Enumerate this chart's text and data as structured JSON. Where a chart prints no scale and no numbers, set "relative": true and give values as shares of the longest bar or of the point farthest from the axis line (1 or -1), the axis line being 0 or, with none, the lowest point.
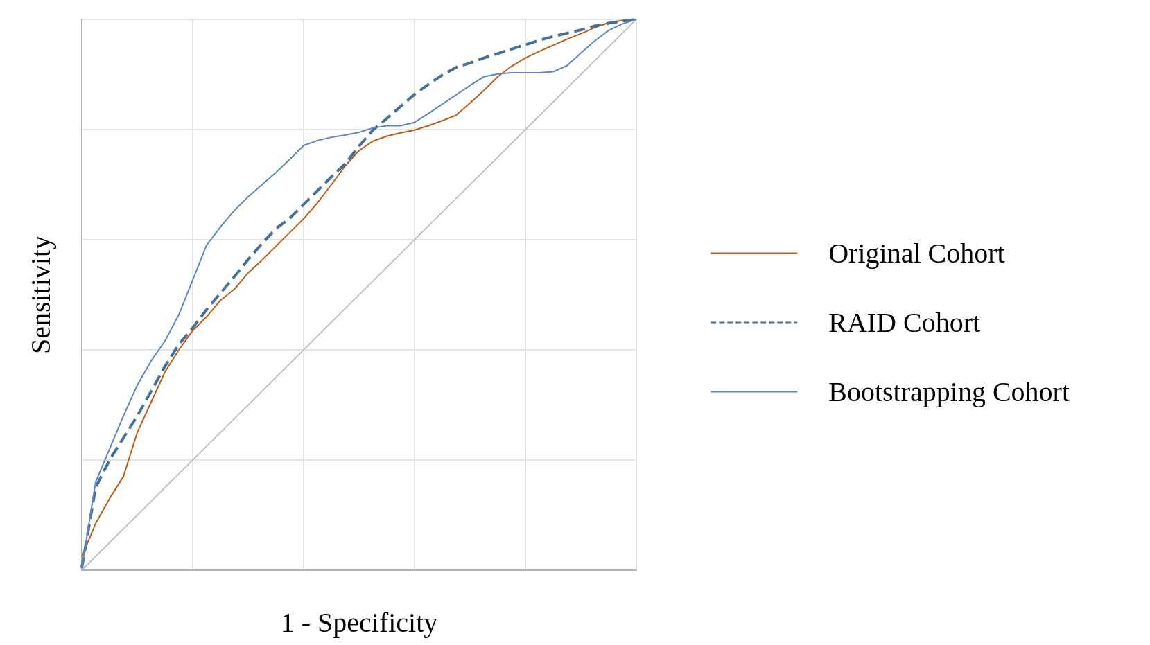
{
  "chart_data": {
    "type": "line",
    "relative": true,
    "xlabel": "1 - Specificity",
    "ylabel": "Sensitivity",
    "grid": true,
    "legend": "right",
    "marker": "none",
    "categories": [
      null,
      null,
      null,
      null,
      null,
      null,
      null,
      null,
      null,
      null,
      null,
      null,
      null,
      null,
      null,
      null,
      null,
      null,
      null,
      null,
      null,
      null,
      null,
      null,
      null,
      null,
      null,
      null,
      null,
      null,
      null,
      null,
      null,
      null,
      null,
      null,
      null,
      null,
      null,
      null,
      null
    ],
    "series": [
      {
        "name": "Original Cohort",
        "color": "#c55a11",
        "line_style": "solid",
        "values": [
          0.024,
          0.085,
          0.13,
          0.17,
          0.25,
          0.305,
          0.36,
          0.4,
          0.435,
          0.46,
          0.49,
          0.51,
          0.54,
          0.563,
          0.588,
          0.613,
          0.638,
          0.667,
          0.7,
          0.734,
          0.762,
          0.779,
          0.788,
          0.794,
          0.799,
          0.807,
          0.816,
          0.826,
          0.848,
          0.871,
          0.896,
          0.915,
          0.93,
          0.942,
          0.953,
          0.964,
          0.974,
          0.985,
          0.994,
          0.998,
          1.0
        ]
      },
      {
        "name": "RAID Cohort",
        "color": "#41719c",
        "line_style": "dashed",
        "values": [
          0.004,
          0.15,
          0.2,
          0.24,
          0.28,
          0.325,
          0.37,
          0.41,
          0.44,
          0.473,
          0.503,
          0.533,
          0.564,
          0.593,
          0.62,
          0.639,
          0.664,
          0.689,
          0.714,
          0.738,
          0.77,
          0.799,
          0.82,
          0.842,
          0.864,
          0.882,
          0.899,
          0.913,
          0.921,
          0.93,
          0.938,
          0.946,
          0.954,
          0.962,
          0.969,
          0.975,
          0.981,
          0.988,
          0.993,
          0.997,
          1.0
        ]
      },
      {
        "name": "Bootstrapping Cohort",
        "color": "#5b85c8",
        "line_style": "solid",
        "values": [
          0.004,
          0.16,
          0.22,
          0.28,
          0.336,
          0.38,
          0.416,
          0.464,
          0.527,
          0.59,
          0.623,
          0.653,
          0.678,
          0.7,
          0.722,
          0.746,
          0.771,
          0.78,
          0.786,
          0.79,
          0.795,
          0.803,
          0.807,
          0.807,
          0.813,
          0.829,
          0.846,
          0.863,
          0.88,
          0.896,
          0.901,
          0.903,
          0.903,
          0.903,
          0.905,
          0.916,
          0.939,
          0.961,
          0.98,
          0.992,
          1.0
        ]
      },
      {
        "color": "#c0c0c0",
        "line_style": "solid",
        "values": [
          0,
          0.025,
          0.05,
          0.075,
          0.1,
          0.125,
          0.15,
          0.175,
          0.2,
          0.225,
          0.25,
          0.275,
          0.3,
          0.325,
          0.35,
          0.375,
          0.4,
          0.425,
          0.45,
          0.475,
          0.5,
          0.525,
          0.55,
          0.575,
          0.6,
          0.625,
          0.65,
          0.675,
          0.7,
          0.725,
          0.75,
          0.775,
          0.8,
          0.825,
          0.85,
          0.875,
          0.9,
          0.925,
          0.95,
          0.975,
          1.0
        ]
      }
    ]
  }
}
